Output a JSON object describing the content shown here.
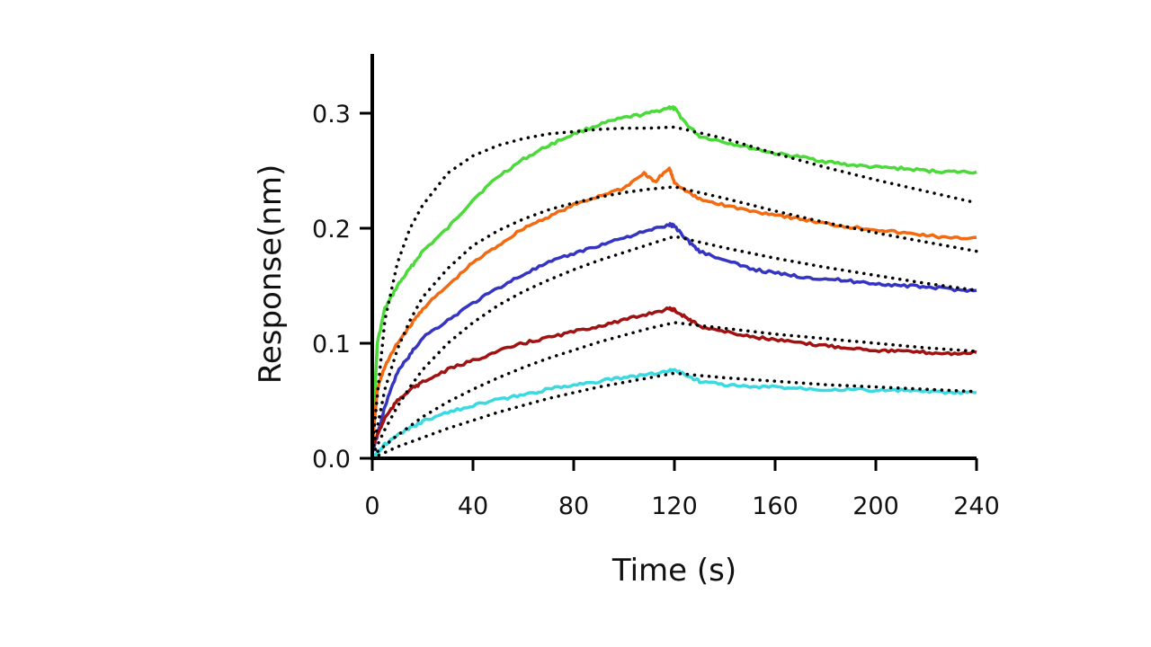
{
  "chart_data": {
    "type": "line",
    "title": "",
    "xlabel": "Time (s)",
    "ylabel": "Response(nm)",
    "xlim": [
      0,
      240
    ],
    "ylim": [
      0,
      0.35
    ],
    "xticks": [
      0,
      40,
      80,
      120,
      160,
      200,
      240
    ],
    "yticks": [
      0,
      0.1,
      0.2,
      0.3
    ],
    "ytick_labels": [
      "0.0",
      "0.1",
      "0.2",
      "0.3"
    ],
    "grid": false,
    "legend": "none",
    "fit_style": "dotted",
    "fit_color": "#000000",
    "series": [
      {
        "color": "#4cd93a",
        "x": [
          0,
          2,
          5,
          10,
          15,
          20,
          30,
          40,
          50,
          60,
          70,
          80,
          90,
          100,
          110,
          118,
          120,
          125,
          130,
          140,
          150,
          160,
          170,
          180,
          190,
          200,
          210,
          220,
          230,
          240
        ],
        "y": [
          0.01,
          0.1,
          0.13,
          0.15,
          0.165,
          0.18,
          0.2,
          0.225,
          0.245,
          0.26,
          0.272,
          0.282,
          0.29,
          0.296,
          0.3,
          0.305,
          0.304,
          0.29,
          0.28,
          0.275,
          0.27,
          0.265,
          0.262,
          0.258,
          0.255,
          0.253,
          0.252,
          0.25,
          0.249,
          0.249
        ]
      },
      {
        "color": "#f26a11",
        "x": [
          0,
          2,
          5,
          10,
          15,
          20,
          30,
          40,
          50,
          60,
          70,
          80,
          90,
          100,
          108,
          112,
          118,
          120,
          125,
          130,
          140,
          150,
          160,
          170,
          180,
          190,
          200,
          210,
          220,
          230,
          240
        ],
        "y": [
          0.01,
          0.06,
          0.08,
          0.1,
          0.115,
          0.13,
          0.15,
          0.17,
          0.185,
          0.2,
          0.21,
          0.22,
          0.228,
          0.235,
          0.248,
          0.24,
          0.252,
          0.24,
          0.232,
          0.225,
          0.22,
          0.215,
          0.212,
          0.208,
          0.204,
          0.201,
          0.199,
          0.196,
          0.194,
          0.191,
          0.192
        ]
      },
      {
        "color": "#3535c2",
        "x": [
          0,
          2,
          5,
          10,
          15,
          20,
          30,
          40,
          50,
          60,
          70,
          80,
          90,
          100,
          110,
          118,
          120,
          125,
          130,
          140,
          150,
          160,
          170,
          180,
          190,
          200,
          210,
          220,
          230,
          240
        ],
        "y": [
          0.005,
          0.02,
          0.045,
          0.075,
          0.09,
          0.105,
          0.12,
          0.135,
          0.148,
          0.16,
          0.17,
          0.178,
          0.185,
          0.192,
          0.198,
          0.203,
          0.202,
          0.19,
          0.18,
          0.172,
          0.165,
          0.161,
          0.158,
          0.156,
          0.154,
          0.152,
          0.15,
          0.149,
          0.147,
          0.146
        ]
      },
      {
        "color": "#a31212",
        "x": [
          0,
          2,
          5,
          10,
          15,
          20,
          30,
          40,
          50,
          60,
          70,
          80,
          90,
          100,
          110,
          118,
          120,
          125,
          130,
          140,
          150,
          160,
          170,
          180,
          190,
          200,
          210,
          220,
          230,
          240
        ],
        "y": [
          0.01,
          0.02,
          0.035,
          0.05,
          0.06,
          0.066,
          0.077,
          0.085,
          0.093,
          0.1,
          0.105,
          0.11,
          0.115,
          0.12,
          0.126,
          0.13,
          0.129,
          0.122,
          0.115,
          0.11,
          0.106,
          0.103,
          0.1,
          0.098,
          0.096,
          0.094,
          0.093,
          0.092,
          0.091,
          0.092
        ]
      },
      {
        "color": "#3cd9e0",
        "x": [
          0,
          2,
          5,
          10,
          15,
          20,
          30,
          40,
          50,
          60,
          70,
          80,
          90,
          100,
          110,
          118,
          120,
          125,
          130,
          140,
          150,
          160,
          170,
          180,
          190,
          200,
          210,
          220,
          230,
          240
        ],
        "y": [
          0,
          0.005,
          0.012,
          0.02,
          0.026,
          0.032,
          0.04,
          0.046,
          0.051,
          0.055,
          0.06,
          0.064,
          0.067,
          0.07,
          0.073,
          0.076,
          0.077,
          0.072,
          0.067,
          0.064,
          0.062,
          0.062,
          0.061,
          0.06,
          0.06,
          0.059,
          0.059,
          0.058,
          0.057,
          0.057
        ]
      }
    ],
    "fits": [
      {
        "x": [
          0,
          5,
          10,
          15,
          20,
          30,
          40,
          50,
          60,
          70,
          80,
          90,
          100,
          110,
          120,
          140,
          160,
          180,
          200,
          220,
          240
        ],
        "y": [
          0.01,
          0.12,
          0.17,
          0.2,
          0.22,
          0.248,
          0.263,
          0.272,
          0.278,
          0.282,
          0.284,
          0.286,
          0.287,
          0.287,
          0.288,
          0.278,
          0.265,
          0.253,
          0.242,
          0.232,
          0.222
        ]
      },
      {
        "x": [
          0,
          5,
          10,
          15,
          20,
          30,
          40,
          50,
          60,
          70,
          80,
          90,
          100,
          110,
          120,
          140,
          160,
          180,
          200,
          220,
          240
        ],
        "y": [
          0.005,
          0.06,
          0.095,
          0.12,
          0.14,
          0.165,
          0.185,
          0.198,
          0.208,
          0.216,
          0.222,
          0.227,
          0.231,
          0.234,
          0.236,
          0.226,
          0.215,
          0.205,
          0.196,
          0.188,
          0.18
        ]
      },
      {
        "x": [
          0,
          5,
          10,
          15,
          20,
          30,
          40,
          50,
          60,
          70,
          80,
          90,
          100,
          110,
          120,
          140,
          160,
          180,
          200,
          220,
          240
        ],
        "y": [
          0.002,
          0.025,
          0.045,
          0.062,
          0.077,
          0.1,
          0.118,
          0.133,
          0.145,
          0.155,
          0.164,
          0.172,
          0.179,
          0.186,
          0.193,
          0.183,
          0.174,
          0.166,
          0.159,
          0.152,
          0.146
        ]
      },
      {
        "x": [
          0,
          10,
          20,
          30,
          40,
          50,
          60,
          70,
          80,
          90,
          100,
          110,
          120,
          140,
          160,
          180,
          200,
          220,
          240
        ],
        "y": [
          0.002,
          0.02,
          0.036,
          0.049,
          0.06,
          0.07,
          0.079,
          0.087,
          0.094,
          0.101,
          0.107,
          0.113,
          0.118,
          0.113,
          0.108,
          0.104,
          0.1,
          0.096,
          0.093
        ]
      },
      {
        "x": [
          0,
          10,
          20,
          30,
          40,
          50,
          60,
          70,
          80,
          90,
          100,
          110,
          120,
          140,
          160,
          180,
          200,
          220,
          240
        ],
        "y": [
          0,
          0.01,
          0.018,
          0.026,
          0.033,
          0.04,
          0.046,
          0.052,
          0.057,
          0.062,
          0.066,
          0.07,
          0.074,
          0.07,
          0.067,
          0.064,
          0.062,
          0.06,
          0.058
        ]
      }
    ]
  }
}
